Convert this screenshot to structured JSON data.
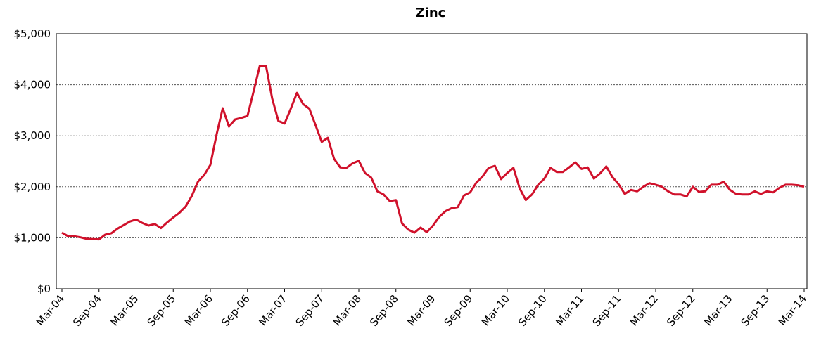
{
  "chart_data": {
    "type": "line",
    "title": "Zinc",
    "categories": [
      "Mar-04",
      null,
      null,
      null,
      null,
      null,
      "Sep-04",
      null,
      null,
      null,
      null,
      null,
      "Mar-05",
      null,
      null,
      null,
      null,
      null,
      "Sep-05",
      null,
      null,
      null,
      null,
      null,
      "Mar-06",
      null,
      null,
      null,
      null,
      null,
      "Sep-06",
      null,
      null,
      null,
      null,
      null,
      "Mar-07",
      null,
      null,
      null,
      null,
      null,
      "Sep-07",
      null,
      null,
      null,
      null,
      null,
      "Mar-08",
      null,
      null,
      null,
      null,
      null,
      "Sep-08",
      null,
      null,
      null,
      null,
      null,
      "Mar-09",
      null,
      null,
      null,
      null,
      null,
      "Sep-09",
      null,
      null,
      null,
      null,
      null,
      "Mar-10",
      null,
      null,
      null,
      null,
      null,
      "Sep-10",
      null,
      null,
      null,
      null,
      null,
      "Mar-11",
      null,
      null,
      null,
      null,
      null,
      "Sep-11",
      null,
      null,
      null,
      null,
      null,
      "Mar-12",
      null,
      null,
      null,
      null,
      null,
      "Sep-12",
      null,
      null,
      null,
      null,
      null,
      "Mar-13",
      null,
      null,
      null,
      null,
      null,
      "Sep-13",
      null,
      null,
      null,
      null,
      null,
      "Mar-14"
    ],
    "series": [
      {
        "name": "Zinc",
        "color": "#d0112b",
        "values": [
          1100,
          1030,
          1030,
          1010,
          980,
          975,
          970,
          1060,
          1090,
          1180,
          1250,
          1320,
          1360,
          1290,
          1240,
          1270,
          1190,
          1300,
          1400,
          1490,
          1610,
          1820,
          2100,
          2230,
          2430,
          3020,
          3540,
          3180,
          3320,
          3350,
          3390,
          3870,
          4370,
          4370,
          3730,
          3290,
          3240,
          3530,
          3840,
          3620,
          3530,
          3210,
          2880,
          2960,
          2550,
          2380,
          2370,
          2460,
          2510,
          2270,
          2180,
          1910,
          1850,
          1720,
          1740,
          1280,
          1160,
          1100,
          1200,
          1110,
          1240,
          1410,
          1520,
          1580,
          1600,
          1830,
          1890,
          2080,
          2200,
          2370,
          2410,
          2150,
          2270,
          2370,
          1970,
          1740,
          1850,
          2040,
          2160,
          2370,
          2290,
          2290,
          2380,
          2480,
          2350,
          2380,
          2160,
          2260,
          2400,
          2190,
          2050,
          1860,
          1940,
          1910,
          2000,
          2070,
          2040,
          2000,
          1910,
          1850,
          1850,
          1810,
          2000,
          1900,
          1910,
          2040,
          2040,
          2100,
          1940,
          1860,
          1850,
          1850,
          1910,
          1860,
          1910,
          1890,
          1980,
          2040,
          2040,
          2030,
          2000
        ]
      }
    ],
    "ylim": [
      0,
      5000
    ],
    "yticks": [
      {
        "value": 0,
        "label": "$0"
      },
      {
        "value": 1000,
        "label": "$1,000"
      },
      {
        "value": 2000,
        "label": "$2,000"
      },
      {
        "value": 3000,
        "label": "$3,000"
      },
      {
        "value": 4000,
        "label": "$4,000"
      },
      {
        "value": 5000,
        "label": "$5,000"
      }
    ],
    "grid": true
  }
}
